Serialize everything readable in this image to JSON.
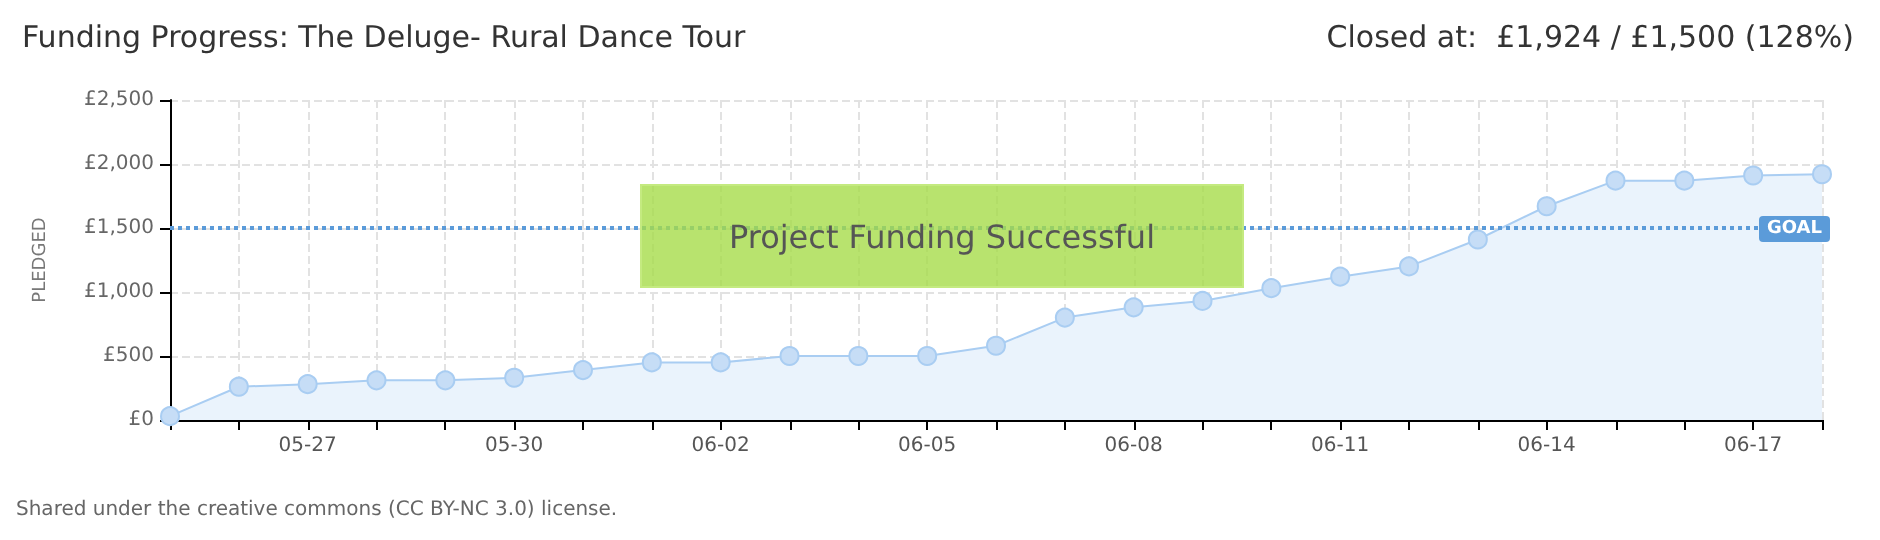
{
  "chart_data": {
    "type": "area",
    "title": "Funding Progress: The Deluge- Rural Dance Tour",
    "subtitle": "Closed at:  £1,924 / £1,500 (128%)",
    "ylabel": "PLEDGED",
    "categories": [
      null,
      null,
      "05-27",
      null,
      null,
      "05-30",
      null,
      null,
      "06-02",
      null,
      null,
      "06-05",
      null,
      null,
      "06-08",
      null,
      null,
      "06-11",
      null,
      null,
      "06-14",
      null,
      null,
      "06-17",
      null
    ],
    "series": [
      {
        "color": "#a9cdf2",
        "values": [
          30,
          260,
          280,
          310,
          310,
          330,
          390,
          450,
          450,
          500,
          500,
          500,
          580,
          800,
          880,
          930,
          1030,
          1120,
          1200,
          1410,
          1670,
          1870,
          1870,
          1910,
          1920
        ]
      }
    ],
    "ylim": [
      0,
      2500
    ],
    "yticks": [
      {
        "value": 0,
        "label": "£0"
      },
      {
        "value": 500,
        "label": "£500"
      },
      {
        "value": 1000,
        "label": "£1,000"
      },
      {
        "value": 1500,
        "label": "£1,500"
      },
      {
        "value": 2000,
        "label": "£2,000"
      },
      {
        "value": 2500,
        "label": "£2,500"
      }
    ],
    "ref_lines": [
      {
        "axis": "y",
        "value": 1500,
        "label": "GOAL",
        "color": "#5b9bd9",
        "line_style": "dotted"
      }
    ],
    "annotations": [
      "Project Funding Successful",
      "Shared under the creative commons (CC BY-NC 3.0) license."
    ],
    "grid": true,
    "marker": "circle"
  }
}
